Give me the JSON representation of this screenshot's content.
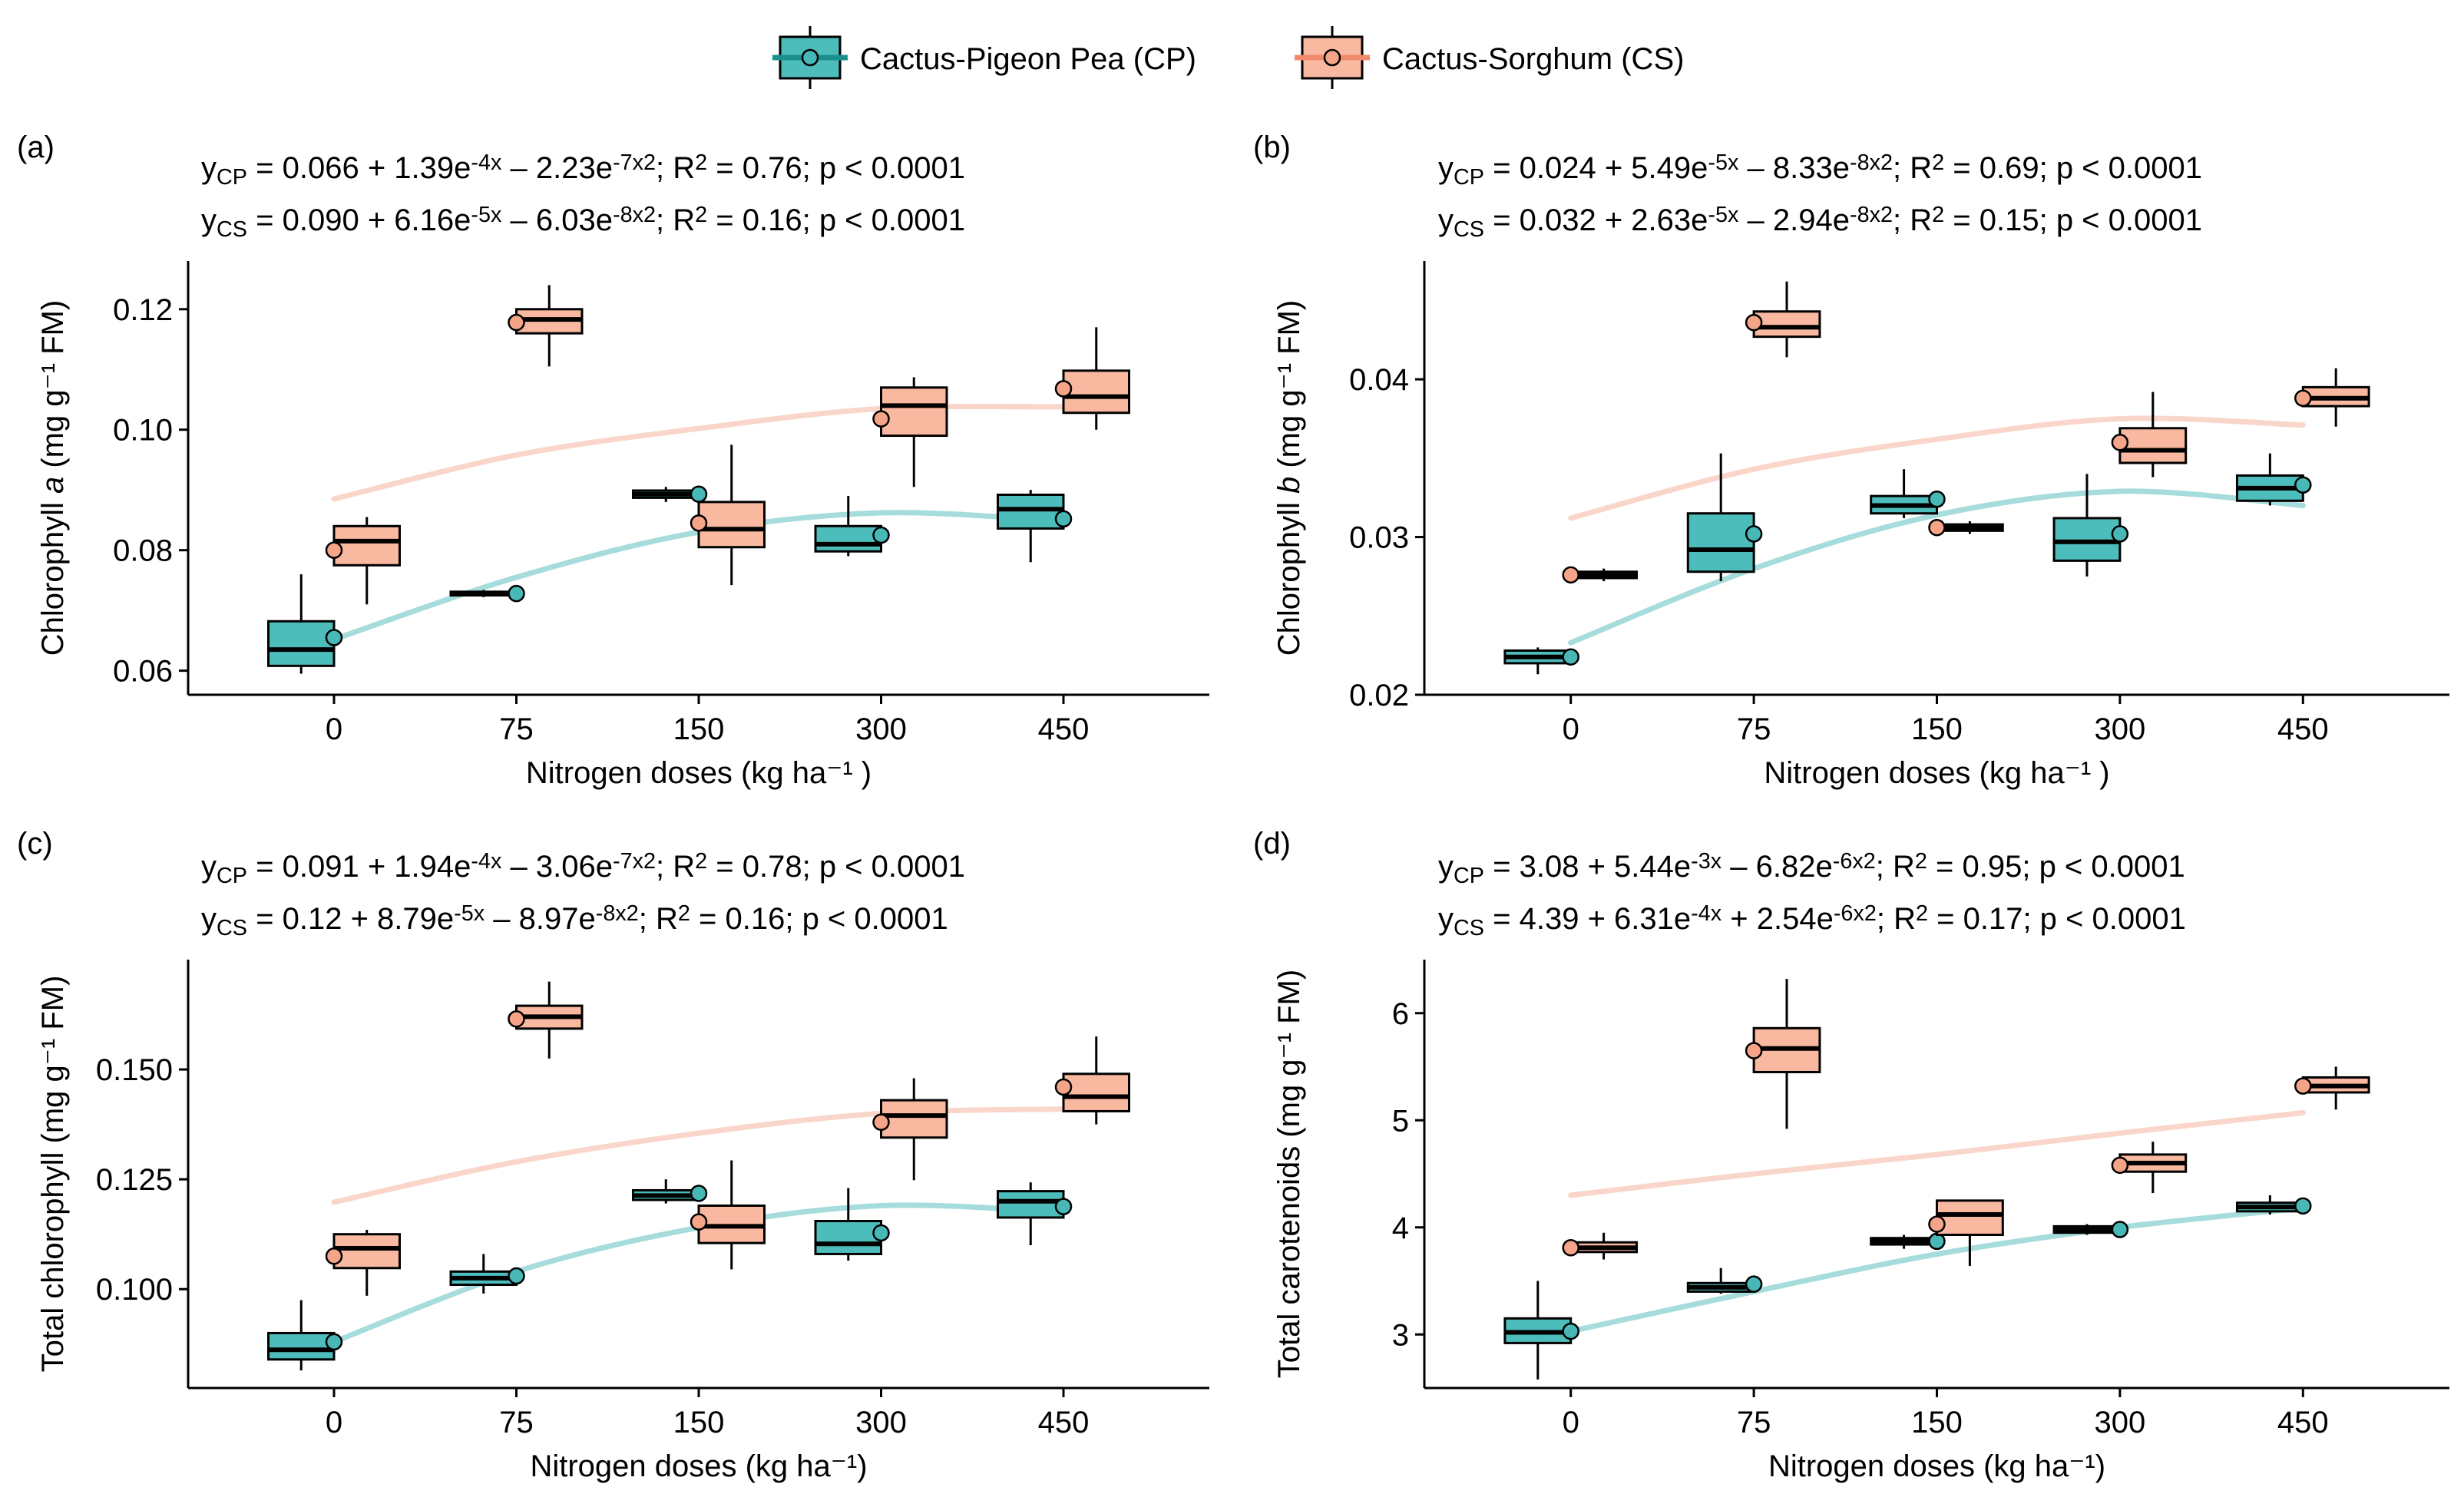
{
  "legend": {
    "items": [
      {
        "name": "Cactus-Pigeon Pea (CP)",
        "key": "CP",
        "fill": "#4dbdbb",
        "line": "#1b8f8d"
      },
      {
        "name": "Cactus-Sorghum (CS)",
        "key": "CS",
        "fill": "#f8b9a0",
        "line": "#f08a6a"
      }
    ]
  },
  "colors": {
    "cp_box": "#4dbdbb",
    "cs_box": "#f8b9a0",
    "cp_fit": "#a6dcdb",
    "cs_fit": "#fad6ca",
    "cp_point": "#47b8b6",
    "cs_point": "#f5a487"
  },
  "chart_data": [
    {
      "panel": "(a)",
      "type": "box",
      "xlabel": "Nitrogen doses (kg ha⁻¹ )",
      "ylabel_pre": "Chlorophyll ",
      "ylabel_italic": "a",
      "ylabel_post": " (mg g⁻¹ FM)",
      "categories": [
        "0",
        "75",
        "150",
        "300",
        "450"
      ],
      "ylim": [
        0.056,
        0.128
      ],
      "yticks": [
        0.06,
        0.08,
        0.1,
        0.12
      ],
      "ytick_labels": [
        "0.06",
        "0.08",
        "0.10",
        "0.12"
      ],
      "eq_cp": "y_CP = 0.066 + 1.39e^-4x – 2.23e^-7x^2; R^2 = 0.76; p < 0.0001",
      "eq_cs": "y_CS = 0.090 + 6.16e^-5x – 6.03e^-8x^2; R^2 = 0.16; p < 0.0001",
      "series": [
        {
          "name": "Cactus-Pigeon Pea (CP)",
          "key": "CP",
          "boxes": [
            {
              "min": 0.0595,
              "q1": 0.0608,
              "median": 0.0635,
              "q3": 0.0682,
              "max": 0.076,
              "mean": 0.0655
            },
            {
              "min": 0.0722,
              "q1": 0.0725,
              "median": 0.0728,
              "q3": 0.0731,
              "max": 0.0734,
              "mean": 0.0728
            },
            {
              "min": 0.088,
              "q1": 0.0887,
              "median": 0.0893,
              "q3": 0.0899,
              "max": 0.0905,
              "mean": 0.0893
            },
            {
              "min": 0.079,
              "q1": 0.0798,
              "median": 0.081,
              "q3": 0.084,
              "max": 0.089,
              "mean": 0.0825
            },
            {
              "min": 0.078,
              "q1": 0.0836,
              "median": 0.0868,
              "q3": 0.0892,
              "max": 0.09,
              "mean": 0.0852
            }
          ]
        },
        {
          "name": "Cactus-Sorghum (CS)",
          "key": "CS",
          "boxes": [
            {
              "min": 0.071,
              "q1": 0.0775,
              "median": 0.0815,
              "q3": 0.084,
              "max": 0.0855,
              "mean": 0.08
            },
            {
              "min": 0.1105,
              "q1": 0.116,
              "median": 0.1183,
              "q3": 0.12,
              "max": 0.124,
              "mean": 0.1178
            },
            {
              "min": 0.0742,
              "q1": 0.0805,
              "median": 0.0835,
              "q3": 0.088,
              "max": 0.0975,
              "mean": 0.0845
            },
            {
              "min": 0.0905,
              "q1": 0.099,
              "median": 0.104,
              "q3": 0.107,
              "max": 0.1087,
              "mean": 0.1018
            },
            {
              "min": 0.1,
              "q1": 0.1028,
              "median": 0.1055,
              "q3": 0.1098,
              "max": 0.117,
              "mean": 0.1068
            }
          ]
        }
      ],
      "fit": {
        "x": [
          0,
          75,
          150,
          300,
          450
        ],
        "CP": [
          0.0652,
          0.0755,
          0.083,
          0.0862,
          0.0848
        ],
        "CS": [
          0.0885,
          0.0958,
          0.1002,
          0.1035,
          0.1038
        ]
      }
    },
    {
      "panel": "(b)",
      "type": "box",
      "xlabel": "Nitrogen doses (kg ha⁻¹ )",
      "ylabel_pre": "Chlorophyll ",
      "ylabel_italic": "b",
      "ylabel_post": " (mg g⁻¹ FM)",
      "categories": [
        "0",
        "75",
        "150",
        "300",
        "450"
      ],
      "ylim": [
        0.02,
        0.0475
      ],
      "yticks": [
        0.02,
        0.03,
        0.04
      ],
      "ytick_labels": [
        "0.02",
        "0.03",
        "0.04"
      ],
      "eq_cp": "y_CP = 0.024 + 5.49e^-5x – 8.33e^-8x^2; R^2 = 0.69; p < 0.0001",
      "eq_cs": "y_CS = 0.032 + 2.63e^-5x – 2.94e^-8x^2; R^2 = 0.15; p < 0.0001",
      "series": [
        {
          "name": "Cactus-Pigeon Pea (CP)",
          "key": "CP",
          "boxes": [
            {
              "min": 0.0213,
              "q1": 0.022,
              "median": 0.0224,
              "q3": 0.0228,
              "max": 0.023,
              "mean": 0.0224
            },
            {
              "min": 0.0272,
              "q1": 0.0278,
              "median": 0.0292,
              "q3": 0.0315,
              "max": 0.0353,
              "mean": 0.0302
            },
            {
              "min": 0.0312,
              "q1": 0.0315,
              "median": 0.032,
              "q3": 0.0326,
              "max": 0.0343,
              "mean": 0.0324
            },
            {
              "min": 0.0275,
              "q1": 0.0285,
              "median": 0.0297,
              "q3": 0.0312,
              "max": 0.034,
              "mean": 0.0302
            },
            {
              "min": 0.032,
              "q1": 0.0323,
              "median": 0.0331,
              "q3": 0.0339,
              "max": 0.0353,
              "mean": 0.0333
            }
          ]
        },
        {
          "name": "Cactus-Sorghum (CS)",
          "key": "CS",
          "boxes": [
            {
              "min": 0.0272,
              "q1": 0.0274,
              "median": 0.0276,
              "q3": 0.0278,
              "max": 0.028,
              "mean": 0.0276
            },
            {
              "min": 0.0414,
              "q1": 0.0427,
              "median": 0.0433,
              "q3": 0.0443,
              "max": 0.0462,
              "mean": 0.0436
            },
            {
              "min": 0.0302,
              "q1": 0.0304,
              "median": 0.0306,
              "q3": 0.0308,
              "max": 0.031,
              "mean": 0.0306
            },
            {
              "min": 0.0338,
              "q1": 0.0347,
              "median": 0.0355,
              "q3": 0.0369,
              "max": 0.0392,
              "mean": 0.036
            },
            {
              "min": 0.037,
              "q1": 0.0383,
              "median": 0.0388,
              "q3": 0.0395,
              "max": 0.0407,
              "mean": 0.0388
            }
          ]
        }
      ],
      "fit": {
        "x": [
          0,
          75,
          150,
          300,
          450
        ],
        "CP": [
          0.0233,
          0.028,
          0.0314,
          0.0329,
          0.032
        ],
        "CS": [
          0.0312,
          0.0343,
          0.0362,
          0.0375,
          0.0371
        ]
      }
    },
    {
      "panel": "(c)",
      "type": "box",
      "xlabel": "Nitrogen doses (kg ha⁻¹)",
      "ylabel_pre": "Total chlorophyll (mg g⁻¹ FM)",
      "ylabel_italic": "",
      "ylabel_post": "",
      "categories": [
        "0",
        "75",
        "150",
        "300",
        "450"
      ],
      "ylim": [
        0.0775,
        0.175
      ],
      "yticks": [
        0.1,
        0.125,
        0.15
      ],
      "ytick_labels": [
        "0.100",
        "0.125",
        "0.150"
      ],
      "eq_cp": "y_CP = 0.091 + 1.94e^-4x – 3.06e^-7x^2; R^2 = 0.78; p < 0.0001",
      "eq_cs": "y_CS = 0.12 + 8.79e^-5x – 8.97e^-8x^2; R^2 = 0.16; p < 0.0001",
      "series": [
        {
          "name": "Cactus-Pigeon Pea (CP)",
          "key": "CP",
          "boxes": [
            {
              "min": 0.0815,
              "q1": 0.084,
              "median": 0.0862,
              "q3": 0.09,
              "max": 0.0975,
              "mean": 0.088
            },
            {
              "min": 0.099,
              "q1": 0.101,
              "median": 0.1025,
              "q3": 0.104,
              "max": 0.108,
              "mean": 0.103
            },
            {
              "min": 0.1195,
              "q1": 0.1203,
              "median": 0.1213,
              "q3": 0.1225,
              "max": 0.125,
              "mean": 0.1218
            },
            {
              "min": 0.1065,
              "q1": 0.108,
              "median": 0.1103,
              "q3": 0.1155,
              "max": 0.123,
              "mean": 0.1128
            },
            {
              "min": 0.11,
              "q1": 0.1163,
              "median": 0.12,
              "q3": 0.1223,
              "max": 0.1243,
              "mean": 0.1188
            }
          ]
        },
        {
          "name": "Cactus-Sorghum (CS)",
          "key": "CS",
          "boxes": [
            {
              "min": 0.0985,
              "q1": 0.1048,
              "median": 0.1093,
              "q3": 0.1125,
              "max": 0.1135,
              "mean": 0.1075
            },
            {
              "min": 0.1525,
              "q1": 0.1593,
              "median": 0.162,
              "q3": 0.1645,
              "max": 0.17,
              "mean": 0.1615
            },
            {
              "min": 0.1045,
              "q1": 0.1105,
              "median": 0.1143,
              "q3": 0.119,
              "max": 0.1293,
              "mean": 0.1153
            },
            {
              "min": 0.1248,
              "q1": 0.1345,
              "median": 0.1395,
              "q3": 0.143,
              "max": 0.148,
              "mean": 0.138
            },
            {
              "min": 0.1375,
              "q1": 0.1405,
              "median": 0.1438,
              "q3": 0.149,
              "max": 0.1575,
              "mean": 0.146
            }
          ]
        }
      ],
      "fit": {
        "x": [
          0,
          75,
          150,
          300,
          450
        ],
        "CP": [
          0.088,
          0.104,
          0.114,
          0.119,
          0.1175
        ],
        "CS": [
          0.1198,
          0.129,
          0.1355,
          0.14,
          0.141
        ]
      }
    },
    {
      "panel": "(d)",
      "type": "box",
      "xlabel": "Nitrogen doses (kg ha⁻¹)",
      "ylabel_pre": "Total carotenoids (mg g⁻¹ FM)",
      "ylabel_italic": "",
      "ylabel_post": "",
      "categories": [
        "0",
        "75",
        "150",
        "300",
        "450"
      ],
      "ylim": [
        2.5,
        6.5
      ],
      "yticks": [
        3,
        4,
        5,
        6
      ],
      "ytick_labels": [
        "3",
        "4",
        "5",
        "6"
      ],
      "eq_cp": "y_CP = 3.08 + 5.44e^-3x – 6.82e^-6x^2; R^2 = 0.95; p < 0.0001",
      "eq_cs": "y_CS = 4.39 + 6.31e^-4x + 2.54e^-6x^2; R^2 = 0.17; p < 0.0001",
      "series": [
        {
          "name": "Cactus-Pigeon Pea (CP)",
          "key": "CP",
          "boxes": [
            {
              "min": 2.58,
              "q1": 2.92,
              "median": 3.02,
              "q3": 3.15,
              "max": 3.5,
              "mean": 3.03
            },
            {
              "min": 3.38,
              "q1": 3.4,
              "median": 3.44,
              "q3": 3.48,
              "max": 3.62,
              "mean": 3.47
            },
            {
              "min": 3.8,
              "q1": 3.84,
              "median": 3.87,
              "q3": 3.9,
              "max": 3.93,
              "mean": 3.87
            },
            {
              "min": 3.93,
              "q1": 3.95,
              "median": 3.98,
              "q3": 4.01,
              "max": 4.03,
              "mean": 3.98
            },
            {
              "min": 4.12,
              "q1": 4.15,
              "median": 4.19,
              "q3": 4.23,
              "max": 4.3,
              "mean": 4.2
            }
          ]
        },
        {
          "name": "Cactus-Sorghum (CS)",
          "key": "CS",
          "boxes": [
            {
              "min": 3.7,
              "q1": 3.77,
              "median": 3.81,
              "q3": 3.86,
              "max": 3.95,
              "mean": 3.81
            },
            {
              "min": 4.92,
              "q1": 5.45,
              "median": 5.67,
              "q3": 5.86,
              "max": 6.32,
              "mean": 5.65
            },
            {
              "min": 3.64,
              "q1": 3.93,
              "median": 4.12,
              "q3": 4.25,
              "max": 4.25,
              "mean": 4.03
            },
            {
              "min": 4.32,
              "q1": 4.52,
              "median": 4.6,
              "q3": 4.68,
              "max": 4.8,
              "mean": 4.58
            },
            {
              "min": 5.1,
              "q1": 5.26,
              "median": 5.32,
              "q3": 5.4,
              "max": 5.5,
              "mean": 5.32
            }
          ]
        }
      ],
      "fit": {
        "x": [
          0,
          75,
          150,
          300,
          450
        ],
        "CP": [
          3.03,
          3.4,
          3.75,
          4.0,
          4.18
        ],
        "CS": [
          4.3,
          4.5,
          4.68,
          4.88,
          5.07
        ]
      }
    }
  ]
}
